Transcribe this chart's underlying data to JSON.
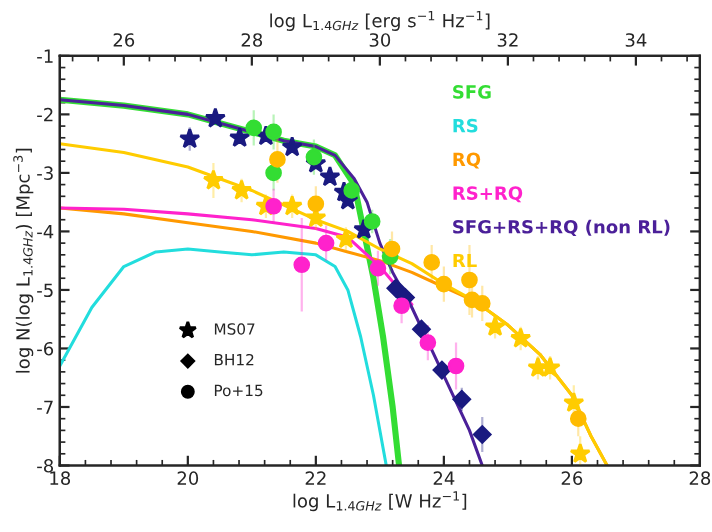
{
  "chart_data": {
    "type": "line",
    "xlabel": "log L$_{1.4GHz}$ [W Hz$^{−1}$]",
    "x2label": "log L$_{1.4GHz}$ [erg s$^{−1}$ Hz$^{−1}$]",
    "ylabel": "log N(log L$_{1.4GHz}$) [Mpc$^{−3}$]",
    "annotations": [
      "MS07",
      "BH12",
      "Po+15"
    ],
    "xlim": [
      18,
      28
    ],
    "xticks": [
      18,
      20,
      22,
      24,
      26,
      28
    ],
    "x2lim": [
      25,
      35
    ],
    "x2ticks": [
      26,
      28,
      30,
      32,
      34
    ],
    "ylim": [
      -8,
      -1
    ],
    "yticks": [
      -8,
      -7,
      -6,
      -5,
      -4,
      -3,
      -2,
      -1
    ],
    "grid": false,
    "legend": "top right",
    "series": [
      {
        "name": "SFG",
        "color": "#33dd33",
        "x": [
          18,
          19,
          20,
          21,
          21.5,
          22,
          22.3,
          22.6,
          22.75,
          22.9,
          23.05,
          23.2,
          23.3
        ],
        "values": [
          -1.75,
          -1.85,
          -2.0,
          -2.3,
          -2.45,
          -2.55,
          -2.7,
          -3.2,
          -4.0,
          -4.8,
          -5.8,
          -7.0,
          -8.0
        ]
      },
      {
        "name": "RS",
        "color": "#22dddd",
        "x": [
          18,
          18.5,
          19,
          19.5,
          20,
          20.5,
          21,
          21.5,
          22,
          22.3,
          22.5,
          22.7,
          22.9,
          23.1
        ],
        "values": [
          -6.3,
          -5.3,
          -4.6,
          -4.35,
          -4.3,
          -4.35,
          -4.4,
          -4.35,
          -4.4,
          -4.6,
          -5.0,
          -5.8,
          -6.8,
          -8.0
        ]
      },
      {
        "name": "RQ",
        "color": "#ff9900",
        "x": [
          18,
          19,
          20,
          21,
          22,
          22.5,
          23,
          23.5,
          24,
          24.5,
          25,
          25.5,
          26,
          26.3,
          26.55
        ],
        "values": [
          -3.6,
          -3.7,
          -3.85,
          -4.0,
          -4.2,
          -4.35,
          -4.5,
          -4.7,
          -4.95,
          -5.2,
          -5.6,
          -6.1,
          -6.8,
          -7.5,
          -8.0
        ]
      },
      {
        "name": "RS+RQ",
        "color": "#ff22cc",
        "x": [
          18,
          19,
          20,
          21,
          22,
          22.5,
          23,
          23.5
        ],
        "values": [
          -3.6,
          -3.62,
          -3.7,
          -3.8,
          -3.95,
          -4.1,
          -4.6,
          -5.25
        ]
      },
      {
        "name": "SFG+RS+RQ (non RL)",
        "color": "#4b2099",
        "x": [
          18,
          19,
          20,
          21,
          21.5,
          22,
          22.3,
          22.6,
          22.8,
          23.0,
          23.2,
          23.5,
          23.8,
          24.1,
          24.4,
          24.6
        ],
        "values": [
          -1.75,
          -1.85,
          -2.0,
          -2.3,
          -2.45,
          -2.55,
          -2.7,
          -3.1,
          -3.5,
          -4.2,
          -4.7,
          -5.3,
          -6.0,
          -6.7,
          -7.4,
          -8.0
        ]
      },
      {
        "name": "RL",
        "color": "#ffcc00",
        "x": [
          18,
          19,
          20,
          21,
          22,
          22.5,
          23,
          23.5,
          24,
          24.5,
          25,
          25.5,
          26,
          26.3,
          26.55
        ],
        "values": [
          -2.5,
          -2.65,
          -2.9,
          -3.3,
          -3.8,
          -4.0,
          -4.3,
          -4.55,
          -4.9,
          -5.2,
          -5.6,
          -6.1,
          -6.8,
          -7.5,
          -8.0
        ]
      },
      {
        "type": "scatter",
        "marker": "star",
        "x": [
          20.03,
          20.43,
          20.81,
          21.22,
          21.63,
          22.0,
          22.22,
          22.44,
          22.5,
          22.75,
          20.4,
          20.84,
          21.22,
          21.63,
          22.0,
          22.47,
          24.8,
          25.2,
          25.47,
          25.66,
          26.03,
          26.13
        ],
        "values": [
          -2.42,
          -2.07,
          -2.4,
          -2.37,
          -2.56,
          -2.84,
          -3.07,
          -3.33,
          -3.47,
          -3.97,
          -3.13,
          -3.3,
          -3.57,
          -3.57,
          -3.77,
          -4.13,
          -5.63,
          -5.83,
          -6.33,
          -6.33,
          -6.93,
          -7.8
        ],
        "colors": [
          "#1a1a80",
          "#1a1a80",
          "#1a1a80",
          "#1a1a80",
          "#1a1a80",
          "#1a1a80",
          "#1a1a80",
          "#1a1a80",
          "#1a1a80",
          "#1a1a80",
          "#ffcc00",
          "#ffcc00",
          "#ffcc00",
          "#ffcc00",
          "#ffcc00",
          "#ffcc00",
          "#ffcc00",
          "#ffcc00",
          "#ffcc00",
          "#ffcc00",
          "#ffcc00",
          "#ffcc00"
        ],
        "errors": [
          0.2,
          0.1,
          0.1,
          0.1,
          0.1,
          0.1,
          0.1,
          0.1,
          0.1,
          0.1,
          0.3,
          0.2,
          0.2,
          0.2,
          0.2,
          0.2,
          0.2,
          0.2,
          0.2,
          0.2,
          0.3,
          0.3
        ]
      },
      {
        "type": "scatter",
        "marker": "diamond",
        "x": [
          23.25,
          23.4,
          23.65,
          23.97,
          24.28,
          24.6
        ],
        "values": [
          -4.97,
          -5.13,
          -5.67,
          -6.37,
          -6.87,
          -7.47
        ],
        "colors": [
          "#1a1a80",
          "#1a1a80",
          "#1a1a80",
          "#1a1a80",
          "#1a1a80",
          "#1a1a80"
        ],
        "errors": [
          0.1,
          0.1,
          0.15,
          0.15,
          0.2,
          0.3
        ]
      },
      {
        "type": "scatter",
        "marker": "circle",
        "x": [
          21.03,
          21.34,
          21.34,
          21.97,
          22.56,
          22.88,
          23.16,
          21.4,
          22.0,
          23.19,
          23.81,
          24.0,
          24.4,
          24.44,
          24.6,
          26.1,
          21.34,
          21.78,
          22.16,
          22.97,
          23.34,
          23.75,
          24.19
        ],
        "values": [
          -2.23,
          -2.3,
          -3.0,
          -2.73,
          -3.3,
          -3.83,
          -4.43,
          -2.77,
          -3.53,
          -4.3,
          -4.53,
          -4.9,
          -4.83,
          -5.17,
          -5.23,
          -7.2,
          -3.57,
          -4.57,
          -4.2,
          -4.63,
          -5.27,
          -5.9,
          -6.3
        ],
        "colors": [
          "#33dd33",
          "#33dd33",
          "#33dd33",
          "#33dd33",
          "#33dd33",
          "#33dd33",
          "#33dd33",
          "#ffbb00",
          "#ffbb00",
          "#ffbb00",
          "#ffbb00",
          "#ffbb00",
          "#ffbb00",
          "#ffbb00",
          "#ffbb00",
          "#ffbb00",
          "#ff22cc",
          "#ff22cc",
          "#ff22cc",
          "#ff22cc",
          "#ff22cc",
          "#ff22cc",
          "#ff22cc"
        ],
        "errors": [
          0.3,
          0.3,
          0.3,
          0.3,
          0.2,
          0.2,
          0.3,
          0.4,
          0.3,
          0.3,
          0.3,
          0.3,
          0.6,
          0.3,
          0.3,
          0.3,
          0.3,
          0.8,
          0.3,
          0.3,
          0.3,
          0.3,
          0.4
        ]
      }
    ]
  }
}
